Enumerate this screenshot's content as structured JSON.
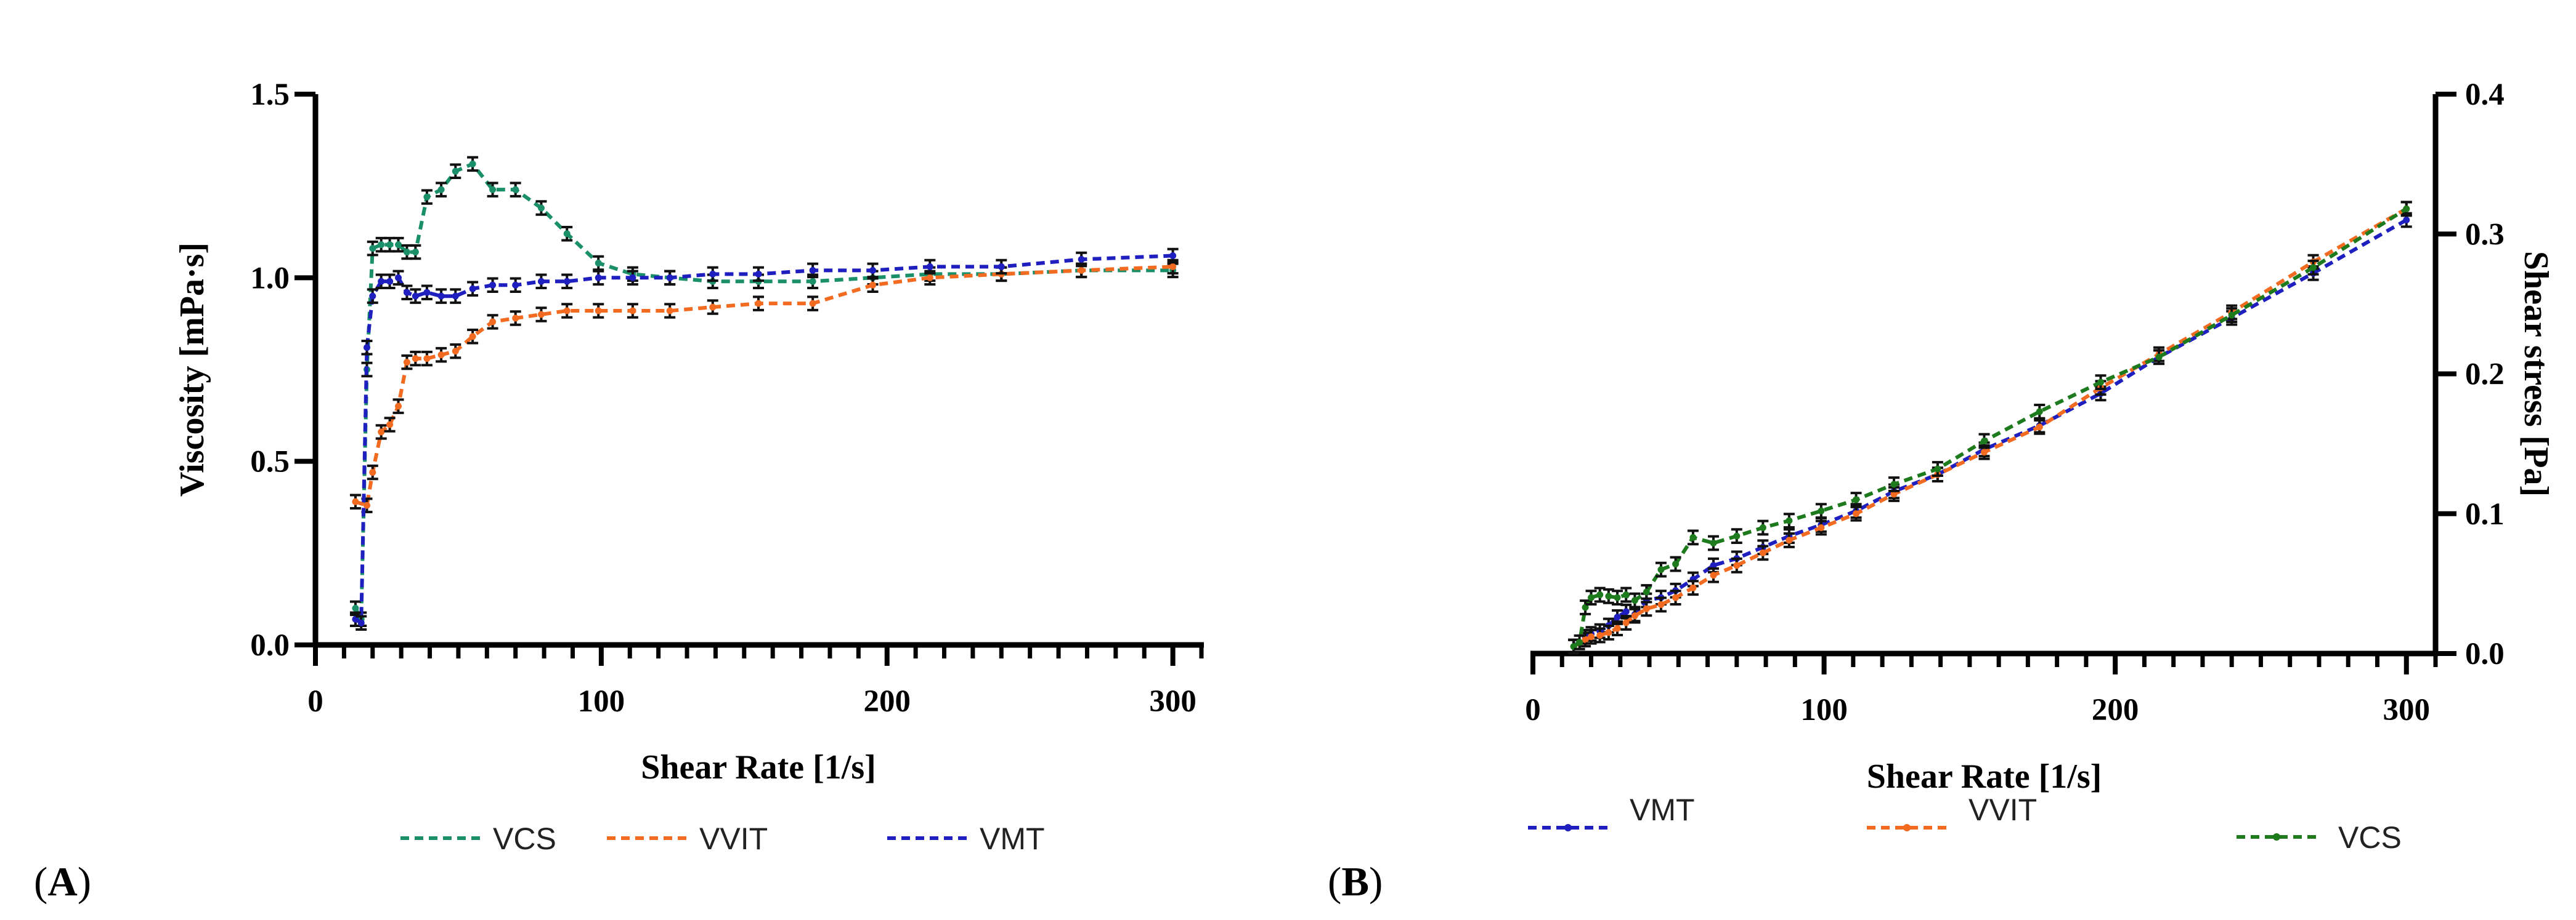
{
  "panels": [
    {
      "label_open": "(",
      "label_letter": "A",
      "label_close": ")",
      "chart_data": {
        "type": "line",
        "title": "",
        "xlabel": "Shear Rate [1/s]",
        "ylabel": "Viscosity [mPa·s]",
        "xlim": [
          0,
          310
        ],
        "ylim": [
          0,
          1.5
        ],
        "x_ticks": [
          0,
          100,
          200,
          300
        ],
        "x_tick_labels": [
          "0",
          "100",
          "200",
          "300"
        ],
        "y_ticks": [
          0,
          0.5,
          1.0,
          1.5
        ],
        "y_tick_labels": [
          "0.0",
          "0.5",
          "1.0",
          "1.5"
        ],
        "y_axis_side": "left",
        "legend_position": "bottom",
        "series": [
          {
            "name": "VCS",
            "color": "#1a8f6a",
            "x": [
              14,
              16,
              18,
              20,
              23,
              26,
              29,
              32,
              35,
              39,
              44,
              49,
              55,
              62,
              70,
              79,
              88,
              99,
              111,
              124,
              139,
              155,
              174,
              195,
              215,
              240,
              268,
              300
            ],
            "y": [
              0.1,
              0.07,
              0.75,
              1.08,
              1.09,
              1.09,
              1.09,
              1.07,
              1.07,
              1.22,
              1.24,
              1.29,
              1.31,
              1.24,
              1.24,
              1.19,
              1.12,
              1.04,
              1.01,
              1.0,
              0.99,
              0.99,
              0.99,
              1.0,
              1.01,
              1.01,
              1.02,
              1.02
            ]
          },
          {
            "name": "VVIT",
            "color": "#f26b21",
            "x": [
              14,
              18,
              20,
              23,
              26,
              29,
              32,
              35,
              39,
              44,
              49,
              55,
              62,
              70,
              79,
              88,
              99,
              111,
              124,
              139,
              155,
              174,
              195,
              215,
              240,
              268,
              300
            ],
            "y": [
              0.39,
              0.38,
              0.47,
              0.58,
              0.6,
              0.65,
              0.77,
              0.78,
              0.78,
              0.79,
              0.8,
              0.84,
              0.88,
              0.89,
              0.9,
              0.91,
              0.91,
              0.91,
              0.91,
              0.92,
              0.93,
              0.93,
              0.98,
              1.0,
              1.01,
              1.02,
              1.03
            ]
          },
          {
            "name": "VMT",
            "color": "#1f1fbf",
            "x": [
              14,
              16,
              18,
              20,
              23,
              26,
              29,
              32,
              35,
              39,
              44,
              49,
              55,
              62,
              70,
              79,
              88,
              99,
              111,
              124,
              139,
              155,
              174,
              195,
              215,
              240,
              268,
              300
            ],
            "y": [
              0.07,
              0.06,
              0.81,
              0.95,
              0.99,
              0.99,
              1.0,
              0.96,
              0.95,
              0.96,
              0.95,
              0.95,
              0.97,
              0.98,
              0.98,
              0.99,
              0.99,
              1.0,
              1.0,
              1.0,
              1.01,
              1.01,
              1.02,
              1.02,
              1.03,
              1.03,
              1.05,
              1.06
            ]
          }
        ],
        "legend_order": [
          "VCS",
          "VVIT",
          "VMT"
        ]
      }
    },
    {
      "label_open": "(",
      "label_letter": "B",
      "label_close": ")",
      "chart_data": {
        "type": "line",
        "title": "",
        "xlabel": "Shear Rate [1/s]",
        "ylabel": "Shear stress [Pa]",
        "xlim": [
          0,
          310
        ],
        "ylim": [
          0,
          0.4
        ],
        "x_ticks": [
          0,
          100,
          200,
          300
        ],
        "x_tick_labels": [
          "0",
          "100",
          "200",
          "300"
        ],
        "y_ticks": [
          0,
          0.1,
          0.2,
          0.3,
          0.4
        ],
        "y_tick_labels": [
          "0.0",
          "0.1",
          "0.2",
          "0.3",
          "0.4"
        ],
        "y_axis_side": "right",
        "legend_position": "bottom",
        "series": [
          {
            "name": "VMT",
            "color": "#1f1fbf",
            "x": [
              14,
              18,
              20,
              23,
              26,
              29,
              32,
              35,
              39,
              44,
              49,
              55,
              62,
              70,
              79,
              88,
              99,
              111,
              124,
              139,
              155,
              174,
              195,
              215,
              240,
              268,
              300
            ],
            "y": [
              0.005,
              0.012,
              0.014,
              0.016,
              0.02,
              0.026,
              0.03,
              0.028,
              0.038,
              0.04,
              0.045,
              0.053,
              0.063,
              0.068,
              0.076,
              0.084,
              0.092,
              0.102,
              0.116,
              0.128,
              0.146,
              0.163,
              0.186,
              0.212,
              0.24,
              0.272,
              0.31
            ]
          },
          {
            "name": "VVIT",
            "color": "#f26b21",
            "x": [
              14,
              18,
              20,
              23,
              26,
              29,
              32,
              35,
              39,
              44,
              49,
              55,
              62,
              70,
              79,
              88,
              99,
              111,
              124,
              139,
              155,
              174,
              195,
              215,
              240,
              268,
              300
            ],
            "y": [
              0.005,
              0.01,
              0.012,
              0.013,
              0.015,
              0.018,
              0.022,
              0.027,
              0.032,
              0.035,
              0.04,
              0.047,
              0.056,
              0.063,
              0.072,
              0.081,
              0.09,
              0.1,
              0.114,
              0.128,
              0.144,
              0.162,
              0.19,
              0.214,
              0.244,
              0.28,
              0.318
            ]
          },
          {
            "name": "VCS",
            "color": "#1d7a1d",
            "x": [
              14,
              16,
              18,
              20,
              23,
              26,
              29,
              32,
              35,
              39,
              44,
              49,
              55,
              62,
              70,
              79,
              88,
              99,
              111,
              124,
              139,
              155,
              174,
              195,
              215,
              240,
              268,
              300
            ],
            "y": [
              0.005,
              0.008,
              0.033,
              0.04,
              0.042,
              0.041,
              0.04,
              0.042,
              0.038,
              0.044,
              0.06,
              0.064,
              0.083,
              0.079,
              0.084,
              0.09,
              0.095,
              0.102,
              0.11,
              0.121,
              0.132,
              0.152,
              0.173,
              0.194,
              0.212,
              0.242,
              0.276,
              0.318
            ]
          }
        ],
        "legend_order": [
          "VMT",
          "VVIT",
          "VCS"
        ]
      }
    }
  ]
}
